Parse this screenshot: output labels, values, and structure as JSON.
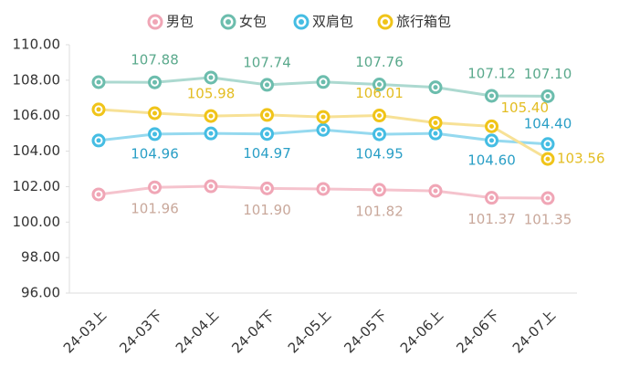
{
  "chart_data": {
    "type": "line",
    "categories": [
      "24-03上",
      "24-03下",
      "24-04上",
      "24-04下",
      "24-05上",
      "24-05下",
      "24-06上",
      "24-06下",
      "24-07上"
    ],
    "series": [
      {
        "name": "男包",
        "color": "#f5c3cd",
        "marker_color": "#f0a6b6",
        "label_color": "#c9a89b",
        "values": [
          101.56,
          101.96,
          102.02,
          101.9,
          101.87,
          101.82,
          101.76,
          101.37,
          101.35
        ],
        "value_labels": [
          null,
          "101.96",
          null,
          "101.90",
          null,
          "101.82",
          null,
          "101.37",
          "101.35"
        ]
      },
      {
        "name": "女包",
        "color": "#acd9d0",
        "marker_color": "#6cbdad",
        "label_color": "#5aa98c",
        "values": [
          107.89,
          107.88,
          108.15,
          107.74,
          107.9,
          107.76,
          107.6,
          107.12,
          107.1
        ],
        "value_labels": [
          null,
          "107.88",
          null,
          "107.74",
          null,
          "107.76",
          null,
          "107.12",
          "107.10"
        ]
      },
      {
        "name": "双肩包",
        "color": "#95d9ef",
        "marker_color": "#45bde3",
        "label_color": "#2a9fc6",
        "values": [
          104.6,
          104.96,
          105.0,
          104.97,
          105.2,
          104.95,
          105.0,
          104.6,
          104.4
        ],
        "value_labels": [
          null,
          "104.96",
          null,
          "104.97",
          null,
          "104.95",
          null,
          "104.60",
          "104.40"
        ]
      },
      {
        "name": "旅行箱包",
        "color": "#f7e196",
        "marker_color": "#f0c419",
        "label_color": "#e3bd22",
        "values": [
          106.35,
          106.14,
          105.98,
          106.04,
          105.93,
          106.01,
          105.6,
          105.4,
          103.56
        ],
        "value_labels": [
          null,
          null,
          "105.98",
          null,
          null,
          "106.01",
          null,
          "105.40",
          "103.56"
        ]
      }
    ],
    "ylim": [
      96,
      110
    ],
    "yticks": [
      {
        "value": 96,
        "label": "96.00"
      },
      {
        "value": 98,
        "label": "98.00"
      },
      {
        "value": 100,
        "label": "100.00"
      },
      {
        "value": 102,
        "label": "102.00"
      },
      {
        "value": 104,
        "label": "104.00"
      },
      {
        "value": 106,
        "label": "106.00"
      },
      {
        "value": 108,
        "label": "108.00"
      },
      {
        "value": 110,
        "label": "110.00"
      }
    ],
    "legend": "top"
  }
}
